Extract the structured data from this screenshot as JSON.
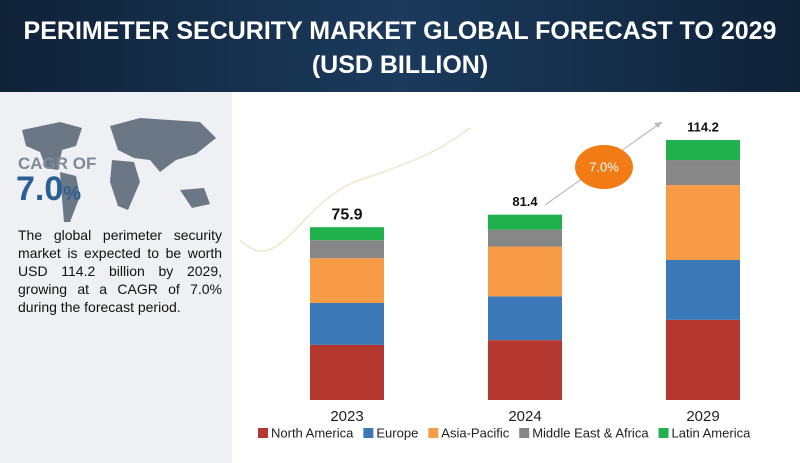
{
  "header": {
    "title": "PERIMETER SECURITY MARKET GLOBAL FORECAST TO 2029 (USD BILLION)"
  },
  "sidebar": {
    "cagr_label": "CAGR OF",
    "cagr_value": "7.0",
    "cagr_unit": "%",
    "text": "The global perimeter security market is expected to be worth USD 114.2 billion by 2029, growing at a CAGR of 7.0% during the forecast period."
  },
  "chart_data": {
    "type": "stacked_bar",
    "categories": [
      "2023",
      "2024",
      "2029"
    ],
    "series": [
      {
        "name": "North America",
        "color": "#b4382f",
        "values": [
          24.2,
          26.3,
          35.2
        ]
      },
      {
        "name": "Europe",
        "color": "#3b78b7",
        "values": [
          18.4,
          19.2,
          26.3
        ]
      },
      {
        "name": "Asia-Pacific",
        "color": "#f89b47",
        "values": [
          19.7,
          21.9,
          32.9
        ]
      },
      {
        "name": "Middle East & Africa",
        "color": "#878787",
        "values": [
          7.9,
          7.4,
          11.0
        ]
      },
      {
        "name": "Latin America",
        "color": "#20b14c",
        "values": [
          5.7,
          6.6,
          8.8
        ]
      }
    ],
    "totals": [
      75.9,
      81.4,
      114.2
    ],
    "annotation": "7.0%"
  }
}
